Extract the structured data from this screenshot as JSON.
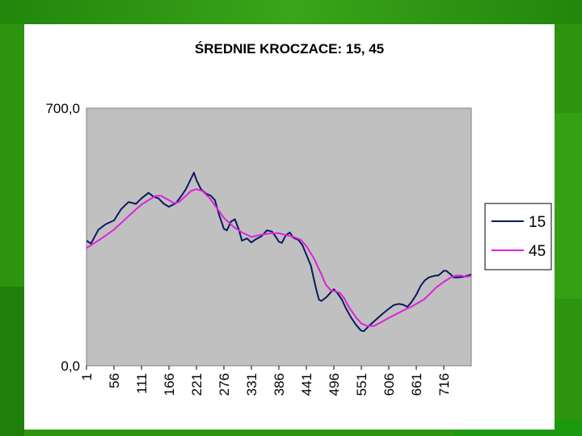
{
  "chart_data": {
    "type": "line",
    "title": "ŚREDNIE KROCZACE: 15, 45",
    "xlabel": "",
    "ylabel": "",
    "ylim": [
      0,
      700
    ],
    "y_tick_labels": [
      "0,0",
      "700,0"
    ],
    "x_tick_labels": [
      "1",
      "56",
      "111",
      "166",
      "221",
      "276",
      "331",
      "386",
      "441",
      "496",
      "551",
      "606",
      "661",
      "716"
    ],
    "xlim": [
      1,
      771
    ],
    "grid": false,
    "plot_background": "#c0c0c0",
    "legend_position": "right",
    "series": [
      {
        "name": "15",
        "color": "#0a1a5e",
        "points": [
          [
            1,
            340
          ],
          [
            10,
            332
          ],
          [
            25,
            370
          ],
          [
            40,
            385
          ],
          [
            56,
            395
          ],
          [
            70,
            425
          ],
          [
            85,
            445
          ],
          [
            100,
            440
          ],
          [
            111,
            455
          ],
          [
            125,
            470
          ],
          [
            135,
            460
          ],
          [
            145,
            455
          ],
          [
            156,
            440
          ],
          [
            166,
            432
          ],
          [
            180,
            442
          ],
          [
            190,
            460
          ],
          [
            200,
            480
          ],
          [
            210,
            508
          ],
          [
            216,
            525
          ],
          [
            221,
            505
          ],
          [
            230,
            480
          ],
          [
            240,
            468
          ],
          [
            250,
            462
          ],
          [
            258,
            450
          ],
          [
            266,
            412
          ],
          [
            276,
            372
          ],
          [
            282,
            368
          ],
          [
            290,
            392
          ],
          [
            298,
            398
          ],
          [
            306,
            370
          ],
          [
            312,
            340
          ],
          [
            322,
            346
          ],
          [
            331,
            335
          ],
          [
            340,
            344
          ],
          [
            351,
            352
          ],
          [
            362,
            368
          ],
          [
            372,
            365
          ],
          [
            380,
            350
          ],
          [
            386,
            337
          ],
          [
            392,
            334
          ],
          [
            400,
            355
          ],
          [
            408,
            362
          ],
          [
            415,
            348
          ],
          [
            425,
            342
          ],
          [
            433,
            328
          ],
          [
            441,
            302
          ],
          [
            450,
            272
          ],
          [
            460,
            212
          ],
          [
            466,
            180
          ],
          [
            471,
            176
          ],
          [
            481,
            186
          ],
          [
            490,
            200
          ],
          [
            496,
            208
          ],
          [
            504,
            196
          ],
          [
            512,
            180
          ],
          [
            520,
            157
          ],
          [
            530,
            132
          ],
          [
            540,
            112
          ],
          [
            550,
            96
          ],
          [
            556,
            94
          ],
          [
            566,
            108
          ],
          [
            576,
            120
          ],
          [
            586,
            132
          ],
          [
            596,
            144
          ],
          [
            606,
            155
          ],
          [
            616,
            165
          ],
          [
            626,
            168
          ],
          [
            635,
            166
          ],
          [
            643,
            160
          ],
          [
            651,
            172
          ],
          [
            661,
            193
          ],
          [
            670,
            218
          ],
          [
            678,
            232
          ],
          [
            686,
            240
          ],
          [
            696,
            244
          ],
          [
            706,
            246
          ],
          [
            716,
            258
          ],
          [
            721,
            258
          ],
          [
            730,
            248
          ],
          [
            736,
            240
          ],
          [
            745,
            240
          ],
          [
            756,
            242
          ],
          [
            766,
            246
          ],
          [
            771,
            248
          ]
        ]
      },
      {
        "name": "45",
        "color": "#e020e0",
        "points": [
          [
            1,
            320
          ],
          [
            30,
            345
          ],
          [
            56,
            370
          ],
          [
            80,
            400
          ],
          [
            100,
            425
          ],
          [
            111,
            438
          ],
          [
            125,
            450
          ],
          [
            140,
            462
          ],
          [
            150,
            462
          ],
          [
            166,
            450
          ],
          [
            176,
            442
          ],
          [
            186,
            445
          ],
          [
            200,
            462
          ],
          [
            210,
            475
          ],
          [
            221,
            480
          ],
          [
            233,
            475
          ],
          [
            248,
            455
          ],
          [
            260,
            432
          ],
          [
            276,
            402
          ],
          [
            295,
            378
          ],
          [
            310,
            364
          ],
          [
            331,
            350
          ],
          [
            350,
            356
          ],
          [
            370,
            360
          ],
          [
            386,
            360
          ],
          [
            400,
            355
          ],
          [
            416,
            350
          ],
          [
            430,
            342
          ],
          [
            441,
            325
          ],
          [
            456,
            292
          ],
          [
            470,
            252
          ],
          [
            480,
            220
          ],
          [
            490,
            205
          ],
          [
            500,
            202
          ],
          [
            508,
            198
          ],
          [
            516,
            185
          ],
          [
            526,
            160
          ],
          [
            540,
            132
          ],
          [
            551,
            115
          ],
          [
            563,
            108
          ],
          [
            576,
            108
          ],
          [
            590,
            118
          ],
          [
            606,
            130
          ],
          [
            620,
            140
          ],
          [
            635,
            150
          ],
          [
            650,
            160
          ],
          [
            661,
            168
          ],
          [
            676,
            180
          ],
          [
            690,
            198
          ],
          [
            700,
            212
          ],
          [
            716,
            228
          ],
          [
            730,
            240
          ],
          [
            740,
            245
          ],
          [
            750,
            245
          ],
          [
            760,
            242
          ],
          [
            771,
            244
          ]
        ]
      }
    ]
  }
}
